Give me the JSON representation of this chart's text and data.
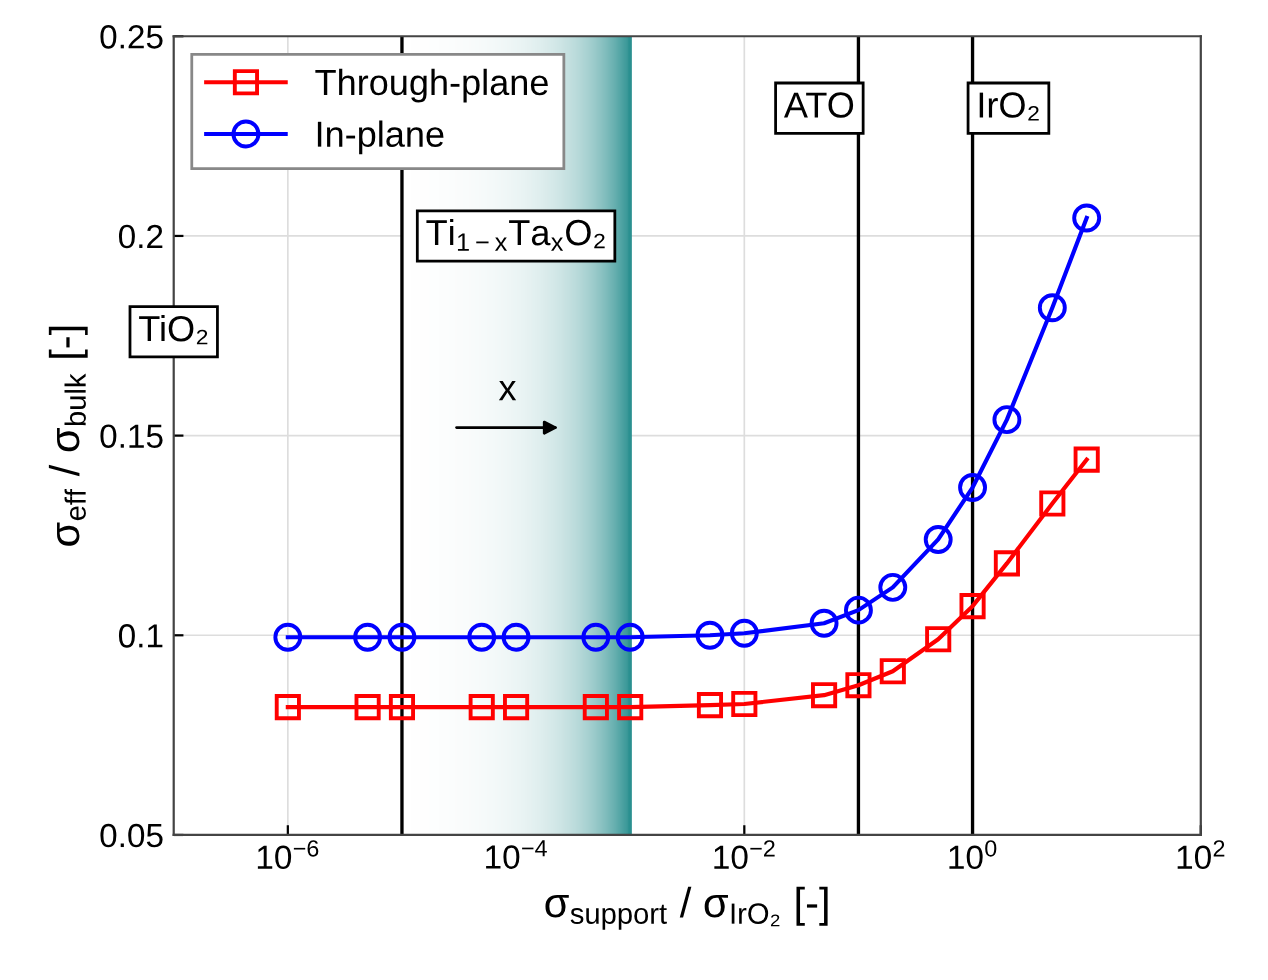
{
  "chart_data": {
    "type": "line",
    "xlabel": "σ$_{support}$ / σ$_{IrO₂}$ [-]",
    "ylabel": "σ$_{eff}$ / σ$_{bulk}$ [-]",
    "log": "x",
    "grid": true,
    "legend": "top left",
    "line_style": "solid",
    "xlim": [
      1e-07,
      100
    ],
    "ylim": [
      0.05,
      0.25
    ],
    "xticks": [
      {
        "value": 1e-06,
        "label": "10$^{−6}$"
      },
      {
        "value": 0.0001,
        "label": "10$^{−4}$"
      },
      {
        "value": 0.01,
        "label": "10$^{−2}$"
      },
      {
        "value": 1,
        "label": "10$^{0}$"
      },
      {
        "value": 100,
        "label": "10$^{2}$"
      }
    ],
    "yticks": [
      0.05,
      0.1,
      0.15,
      0.2,
      0.25
    ],
    "x": [
      1e-06,
      5e-06,
      1e-05,
      5e-05,
      0.0001,
      0.0005,
      0.001,
      0.005,
      0.01,
      0.05,
      0.1,
      0.2,
      0.5,
      1,
      2,
      5,
      10
    ],
    "series": [
      {
        "name": "Through-plane",
        "color": "#ff0000",
        "marker": "square",
        "values": [
          0.082,
          0.082,
          0.082,
          0.082,
          0.082,
          0.082,
          0.082,
          0.0825,
          0.0828,
          0.085,
          0.0875,
          0.091,
          0.099,
          0.1073,
          0.118,
          0.133,
          0.144
        ]
      },
      {
        "name": "In-plane",
        "color": "#0000ff",
        "marker": "circle",
        "values": [
          0.0995,
          0.0995,
          0.0995,
          0.0995,
          0.0995,
          0.0995,
          0.0995,
          0.1,
          0.1005,
          0.103,
          0.1063,
          0.112,
          0.124,
          0.137,
          0.154,
          0.182,
          0.2045
        ]
      }
    ],
    "bands": [
      {
        "axis": "x",
        "from": 1e-05,
        "to": 0.001,
        "label": "Ti$_{1−x}$Ta$_{x}$O₂",
        "color": "#2a9090"
      }
    ],
    "ref_lines": [
      {
        "axis": "x",
        "value": 1e-05,
        "color": "#000000"
      },
      {
        "axis": "x",
        "value": 0.001,
        "color": "#2a9090"
      },
      {
        "axis": "x",
        "value": 0.1,
        "label": "ATO",
        "color": "#000000"
      },
      {
        "axis": "x",
        "value": 1,
        "label": "IrO₂",
        "color": "#000000"
      }
    ],
    "annotations": [
      "TiO₂",
      "x"
    ]
  }
}
